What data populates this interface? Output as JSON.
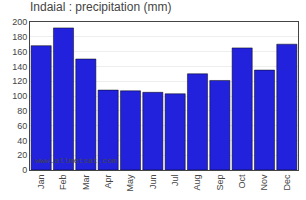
{
  "chart_data": {
    "type": "bar",
    "title": "Indaial : precipitation (mm)",
    "categories": [
      "Jan",
      "Feb",
      "Mar",
      "Apr",
      "May",
      "Jun",
      "Jul",
      "Aug",
      "Sep",
      "Oct",
      "Nov",
      "Dec"
    ],
    "values": [
      168,
      192,
      150,
      108,
      107,
      105,
      103,
      130,
      121,
      165,
      135,
      170
    ],
    "color": "#2222dd",
    "ylim": [
      0,
      200
    ],
    "yticks": [
      0,
      20,
      40,
      60,
      80,
      100,
      120,
      140,
      160,
      180,
      200
    ],
    "grid": true,
    "annotations": [
      "www.allmetsat.com"
    ]
  }
}
